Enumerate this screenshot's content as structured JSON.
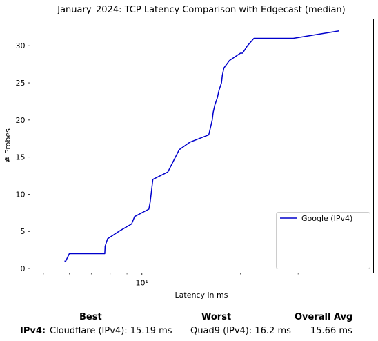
{
  "chart_data": {
    "type": "line",
    "title": "January_2024: TCP Latency Comparison with Edgecast (median)",
    "xlabel": "Latency in ms",
    "ylabel": "# Probes",
    "xscale": "log",
    "xlim": [
      4.55,
      51.0
    ],
    "ylim": [
      -0.6,
      33.6
    ],
    "x_major_ticks": [
      {
        "value": 10,
        "label": "10¹"
      }
    ],
    "x_minor_ticks": [
      5,
      6,
      7,
      8,
      9,
      20,
      30,
      40
    ],
    "y_ticks": [
      0,
      5,
      10,
      15,
      20,
      25,
      30
    ],
    "grid": false,
    "legend_position": "lower right",
    "series": [
      {
        "name": "Google (IPv4)",
        "color": "#0000cc",
        "x": [
          5.8,
          5.85,
          6.0,
          7.0,
          7.7,
          7.72,
          7.85,
          8.5,
          9.3,
          9.5,
          10.5,
          10.6,
          10.8,
          12.0,
          13.0,
          14.0,
          16.0,
          16.2,
          16.4,
          16.5,
          16.7,
          17.0,
          17.2,
          17.5,
          17.6,
          17.8,
          18.5,
          20.0,
          20.3,
          21.0,
          22.0,
          23.0,
          25.0,
          29.0,
          40.0
        ],
        "y": [
          1,
          1,
          2,
          2,
          2,
          3,
          4,
          5,
          6,
          7,
          8,
          9,
          12,
          13,
          16,
          17,
          18,
          19,
          20,
          21,
          22,
          23,
          24,
          25,
          26,
          27,
          28,
          29,
          29,
          30,
          31,
          31,
          31,
          31,
          32
        ]
      }
    ]
  },
  "summary": {
    "header_best": "Best",
    "header_worst": "Worst",
    "header_avg": "Overall Avg",
    "row_label": "IPv4:",
    "best": "Cloudflare (IPv4): 15.19 ms",
    "worst": "Quad9 (IPv4): 16.2 ms",
    "avg": "15.66 ms"
  }
}
